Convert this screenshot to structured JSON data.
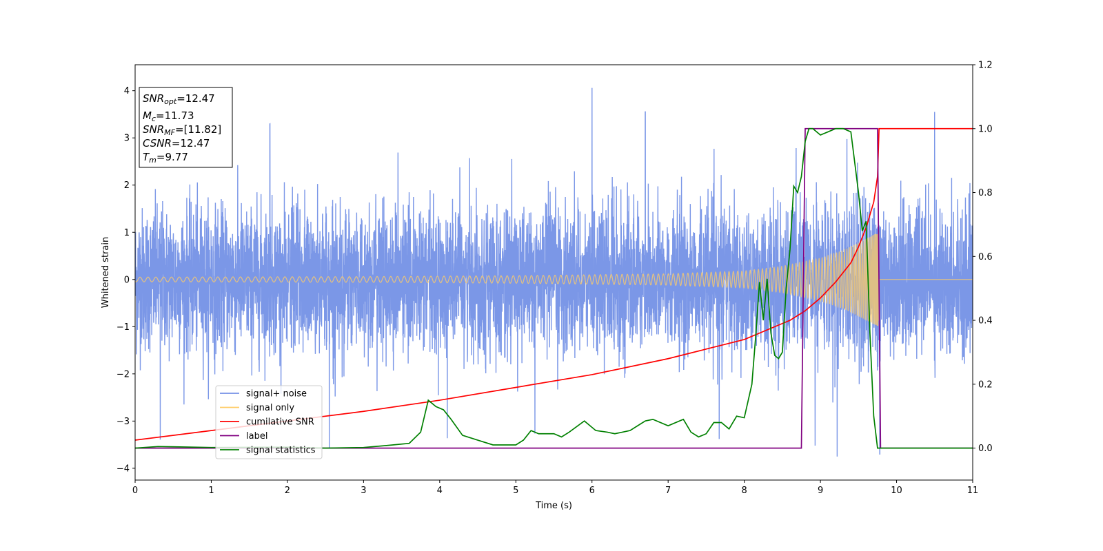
{
  "chart_data": {
    "type": "line",
    "xlabel": "Time (s)",
    "ylabel": "Whitened strain",
    "xlim": [
      0,
      11
    ],
    "ylim_left": [
      -4.25,
      4.55
    ],
    "ylim_right": [
      -0.1,
      1.2
    ],
    "x_ticks": [
      "0",
      "1",
      "2",
      "3",
      "4",
      "5",
      "6",
      "7",
      "8",
      "9",
      "10",
      "11"
    ],
    "y_ticks_left": [
      "−4",
      "−3",
      "−2",
      "−1",
      "0",
      "1",
      "2",
      "3",
      "4"
    ],
    "y_ticks_right": [
      "0.0",
      "0.2",
      "0.4",
      "0.6",
      "0.8",
      "1.0",
      "1.2"
    ],
    "grid": false,
    "legend_position": "lower-left",
    "legend": [
      {
        "name": "signal+ noise",
        "color": "#7491e6"
      },
      {
        "name": "signal only",
        "color": "#ffcc66"
      },
      {
        "name": "cumilative SNR",
        "color": "#ff0000"
      },
      {
        "name": "label",
        "color": "#800080"
      },
      {
        "name": "signal statistics",
        "color": "#008000"
      }
    ],
    "info_box": {
      "snr_opt": {
        "base": "SNR",
        "sub": "opt",
        "value": "=12.47"
      },
      "mc": {
        "base": "M",
        "sub": "c",
        "value": "=11.73"
      },
      "snr_mf": {
        "base": "SNR",
        "sub": "MF",
        "value": "=[11.82]"
      },
      "csnr": {
        "base": "CSNR",
        "value": "=12.47"
      },
      "tm": {
        "base": "T",
        "sub": "m",
        "value": "=9.77"
      }
    },
    "series": [
      {
        "name": "signal+ noise",
        "axis": "left",
        "color": "#7491e6",
        "description_of_values": "whitened noise, |y| mostly within ±2, spikes up to 4.2",
        "noise_std": 0.75,
        "peak_spikes": [
          [
            0.33,
            -3.35
          ],
          [
            1.77,
            3.25
          ],
          [
            2.55,
            -3.6
          ],
          [
            4.1,
            -3.3
          ],
          [
            5.25,
            -3.2
          ],
          [
            6.0,
            4.15
          ],
          [
            6.7,
            3.65
          ],
          [
            7.67,
            -3.4
          ],
          [
            8.93,
            -3.45
          ],
          [
            9.22,
            -3.85
          ],
          [
            9.78,
            -3.7
          ],
          [
            10.5,
            3.55
          ]
        ]
      },
      {
        "name": "signal only",
        "axis": "left",
        "color": "#ffcc66",
        "chirp_merger_time": 9.77,
        "envelope": [
          [
            0,
            0.05
          ],
          [
            3,
            0.06
          ],
          [
            5,
            0.08
          ],
          [
            7,
            0.12
          ],
          [
            8,
            0.18
          ],
          [
            8.5,
            0.28
          ],
          [
            9,
            0.45
          ],
          [
            9.3,
            0.62
          ],
          [
            9.5,
            0.78
          ],
          [
            9.7,
            0.95
          ],
          [
            9.77,
            1.0
          ]
        ]
      },
      {
        "name": "cumilative SNR",
        "axis": "right",
        "x": [
          0,
          1,
          2,
          3,
          4,
          5,
          6,
          7,
          7.5,
          8,
          8.3,
          8.6,
          8.8,
          9.0,
          9.2,
          9.4,
          9.5,
          9.6,
          9.7,
          9.75,
          9.77,
          11
        ],
        "y": [
          0.025,
          0.055,
          0.085,
          0.115,
          0.15,
          0.19,
          0.23,
          0.28,
          0.31,
          0.34,
          0.37,
          0.4,
          0.43,
          0.47,
          0.52,
          0.58,
          0.63,
          0.69,
          0.77,
          0.85,
          1.0,
          1.0
        ]
      },
      {
        "name": "label",
        "axis": "right",
        "x": [
          0,
          8.75,
          8.8,
          9.75,
          9.79,
          11
        ],
        "y": [
          0.0,
          0.0,
          1.0,
          1.0,
          0.0,
          0.0
        ]
      },
      {
        "name": "signal statistics",
        "axis": "right",
        "x": [
          0,
          0.3,
          1,
          2,
          2.5,
          3,
          3.3,
          3.6,
          3.75,
          3.85,
          3.95,
          4.05,
          4.15,
          4.3,
          4.5,
          4.7,
          5,
          5.1,
          5.2,
          5.3,
          5.5,
          5.6,
          5.7,
          5.9,
          6.05,
          6.2,
          6.3,
          6.4,
          6.5,
          6.6,
          6.7,
          6.8,
          7.0,
          7.2,
          7.3,
          7.4,
          7.5,
          7.6,
          7.7,
          7.8,
          7.9,
          8.0,
          8.1,
          8.15,
          8.2,
          8.25,
          8.3,
          8.35,
          8.4,
          8.45,
          8.5,
          8.55,
          8.6,
          8.65,
          8.7,
          8.75,
          8.8,
          8.85,
          8.9,
          9.0,
          9.1,
          9.2,
          9.3,
          9.4,
          9.5,
          9.55,
          9.6,
          9.65,
          9.7,
          9.75,
          9.8,
          11
        ],
        "y": [
          0.0,
          0.005,
          0.002,
          0.003,
          0.0,
          0.002,
          0.008,
          0.015,
          0.05,
          0.15,
          0.13,
          0.12,
          0.09,
          0.04,
          0.025,
          0.01,
          0.01,
          0.025,
          0.055,
          0.045,
          0.045,
          0.035,
          0.05,
          0.085,
          0.055,
          0.05,
          0.045,
          0.05,
          0.055,
          0.07,
          0.085,
          0.09,
          0.07,
          0.09,
          0.05,
          0.035,
          0.045,
          0.08,
          0.08,
          0.06,
          0.1,
          0.095,
          0.2,
          0.35,
          0.52,
          0.4,
          0.53,
          0.36,
          0.29,
          0.28,
          0.3,
          0.5,
          0.62,
          0.82,
          0.8,
          0.85,
          0.96,
          1.0,
          1.0,
          0.98,
          0.99,
          1.0,
          1.0,
          0.99,
          0.8,
          0.68,
          0.71,
          0.36,
          0.1,
          0.0,
          0.0,
          0.0
        ]
      }
    ]
  }
}
